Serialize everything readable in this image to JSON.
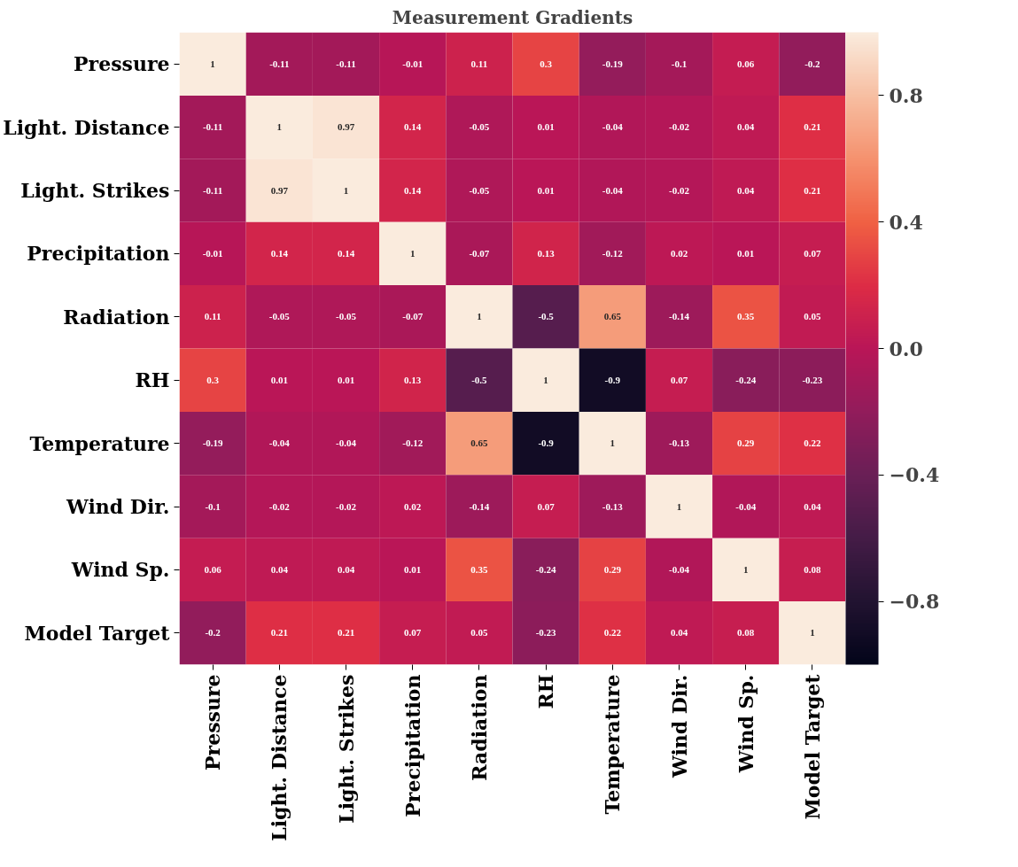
{
  "chart_data": {
    "type": "heatmap",
    "title": "Measurement Gradients",
    "categories": [
      "Pressure",
      "Light. Distance",
      "Light. Strikes",
      "Precipitation",
      "Radiation",
      "RH",
      "Temperature",
      "Wind Dir.",
      "Wind Sp.",
      "Model Target"
    ],
    "y_categories": [
      "Pressure",
      "Light. Distance",
      "Light. Strikes",
      "Precipitation",
      "Radiation",
      "RH",
      "Temperature",
      "Wind Dir.",
      "Wind Sp.",
      "Model Target"
    ],
    "cells": [
      [
        1,
        -0.11,
        -0.11,
        -0.01,
        0.11,
        0.3,
        -0.19,
        -0.1,
        0.06,
        -0.2
      ],
      [
        -0.11,
        1,
        0.97,
        0.14,
        -0.05,
        0.01,
        -0.04,
        -0.02,
        0.04,
        0.21
      ],
      [
        -0.11,
        0.97,
        1,
        0.14,
        -0.05,
        0.01,
        -0.04,
        -0.02,
        0.04,
        0.21
      ],
      [
        -0.01,
        0.14,
        0.14,
        1,
        -0.07,
        0.13,
        -0.12,
        0.02,
        0.01,
        0.07
      ],
      [
        0.11,
        -0.05,
        -0.05,
        -0.07,
        1,
        -0.5,
        0.65,
        -0.14,
        0.35,
        0.05
      ],
      [
        0.3,
        0.01,
        0.01,
        0.13,
        -0.5,
        1,
        -0.9,
        0.07,
        -0.24,
        -0.23
      ],
      [
        -0.19,
        -0.04,
        -0.04,
        -0.12,
        0.65,
        -0.9,
        1,
        -0.13,
        0.29,
        0.22
      ],
      [
        -0.1,
        -0.02,
        -0.02,
        0.02,
        -0.14,
        0.07,
        -0.13,
        1,
        -0.04,
        0.04
      ],
      [
        0.06,
        0.04,
        0.04,
        0.01,
        0.35,
        -0.24,
        0.29,
        -0.04,
        1,
        0.08
      ],
      [
        -0.2,
        0.21,
        0.21,
        0.07,
        0.05,
        -0.23,
        0.22,
        0.04,
        0.08,
        1
      ]
    ],
    "clim": [
      -1,
      1
    ],
    "cticks": [
      {
        "value": -0.8,
        "label": "−0.8"
      },
      {
        "value": -0.4,
        "label": "−0.4"
      },
      {
        "value": 0,
        "label": "0.0"
      },
      0.4,
      0.8
    ],
    "data_labels": true
  }
}
